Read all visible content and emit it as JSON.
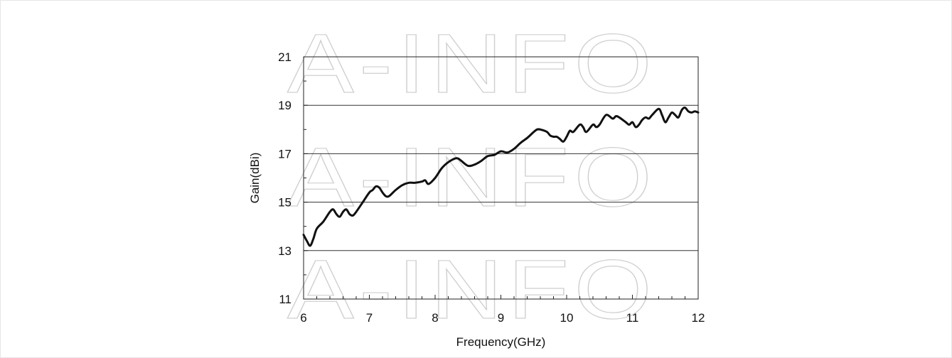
{
  "watermark": "A-INFO",
  "chart_data": {
    "type": "line",
    "title": "",
    "xlabel": "Frequency(GHz)",
    "ylabel": "Gain(dBi)",
    "xlim": [
      6,
      12
    ],
    "ylim": [
      11,
      21
    ],
    "x_ticks": [
      6,
      7,
      8,
      9,
      10,
      11,
      12
    ],
    "y_ticks": [
      11,
      13,
      15,
      17,
      19,
      21
    ],
    "grid": "horizontal gridlines at 13, 15, 17, 19",
    "line_color": "#111111",
    "series": [
      {
        "x": [
          6.0,
          6.05,
          6.1,
          6.15,
          6.2,
          6.3,
          6.4,
          6.45,
          6.5,
          6.55,
          6.6,
          6.65,
          6.7,
          6.75,
          6.8,
          6.9,
          7.0,
          7.05,
          7.1,
          7.15,
          7.2,
          7.25,
          7.3,
          7.4,
          7.5,
          7.6,
          7.7,
          7.8,
          7.85,
          7.9,
          8.0,
          8.1,
          8.2,
          8.3,
          8.35,
          8.4,
          8.5,
          8.6,
          8.7,
          8.8,
          8.9,
          9.0,
          9.1,
          9.2,
          9.3,
          9.4,
          9.5,
          9.55,
          9.6,
          9.7,
          9.75,
          9.8,
          9.85,
          9.9,
          9.95,
          10.0,
          10.05,
          10.1,
          10.2,
          10.25,
          10.3,
          10.4,
          10.45,
          10.5,
          10.6,
          10.7,
          10.75,
          10.8,
          10.9,
          10.95,
          11.0,
          11.05,
          11.1,
          11.15,
          11.2,
          11.25,
          11.3,
          11.4,
          11.45,
          11.5,
          11.55,
          11.6,
          11.65,
          11.7,
          11.75,
          11.8,
          11.85,
          11.9,
          11.95,
          12.0
        ],
        "y": [
          13.65,
          13.4,
          13.2,
          13.5,
          13.9,
          14.2,
          14.6,
          14.7,
          14.5,
          14.4,
          14.6,
          14.7,
          14.5,
          14.45,
          14.6,
          15.0,
          15.4,
          15.5,
          15.65,
          15.6,
          15.4,
          15.25,
          15.25,
          15.5,
          15.7,
          15.8,
          15.8,
          15.85,
          15.9,
          15.75,
          16.0,
          16.4,
          16.65,
          16.8,
          16.8,
          16.7,
          16.5,
          16.55,
          16.7,
          16.9,
          16.95,
          17.1,
          17.05,
          17.2,
          17.45,
          17.65,
          17.9,
          18.0,
          18.0,
          17.9,
          17.75,
          17.7,
          17.7,
          17.6,
          17.5,
          17.7,
          17.95,
          17.9,
          18.2,
          18.1,
          17.9,
          18.2,
          18.1,
          18.2,
          18.6,
          18.45,
          18.55,
          18.5,
          18.3,
          18.2,
          18.3,
          18.1,
          18.2,
          18.4,
          18.5,
          18.45,
          18.6,
          18.85,
          18.6,
          18.3,
          18.5,
          18.7,
          18.6,
          18.5,
          18.8,
          18.9,
          18.75,
          18.7,
          18.75,
          18.7
        ]
      }
    ]
  }
}
